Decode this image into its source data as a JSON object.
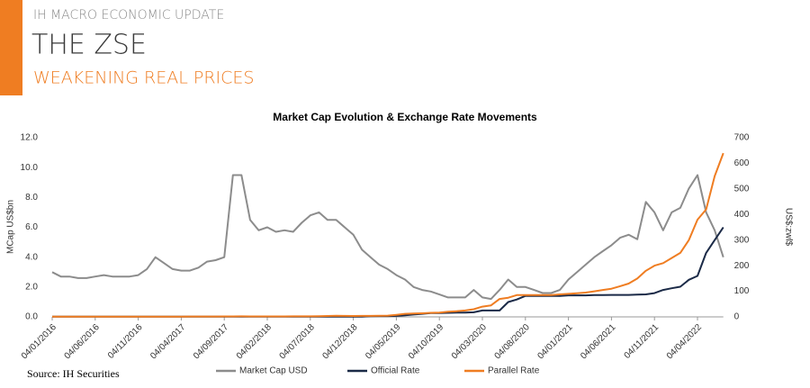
{
  "header": {
    "kicker": "IH MACRO ECONOMIC UPDATE",
    "title": "THE ZSE",
    "subtitle": "WEAKENING REAL PRICES"
  },
  "source": "Source: IH Securities",
  "chart_data": {
    "type": "line",
    "title": "Market Cap Evolution & Exchange Rate Movements",
    "y_label": "MCap US$bn",
    "y2_label": "US$:zwl$",
    "categories": [
      "04/01/2016",
      null,
      null,
      null,
      null,
      "04/06/2016",
      null,
      null,
      null,
      null,
      "04/11/2016",
      null,
      null,
      null,
      null,
      "04/04/2017",
      null,
      null,
      null,
      null,
      "04/09/2017",
      null,
      null,
      null,
      null,
      "04/02/2018",
      null,
      null,
      null,
      null,
      "04/07/2018",
      null,
      null,
      null,
      null,
      "04/12/2018",
      null,
      null,
      null,
      null,
      "04/05/2019",
      null,
      null,
      null,
      null,
      "04/10/2019",
      null,
      null,
      null,
      null,
      "04/03/2020",
      null,
      null,
      null,
      null,
      "04/08/2020",
      null,
      null,
      null,
      null,
      "04/01/2021",
      null,
      null,
      null,
      null,
      "04/06/2021",
      null,
      null,
      null,
      null,
      "04/11/2021",
      null,
      null,
      null,
      null,
      "04/04/2022",
      null,
      null,
      null
    ],
    "series": [
      {
        "name": "Market Cap USD",
        "color": "#8c8c8c",
        "values": [
          3.0,
          2.7,
          2.7,
          2.6,
          2.6,
          2.7,
          2.8,
          2.7,
          2.7,
          2.7,
          2.8,
          3.2,
          4.0,
          3.6,
          3.2,
          3.1,
          3.1,
          3.3,
          3.7,
          3.8,
          4.0,
          9.5,
          9.5,
          6.5,
          5.8,
          6.0,
          5.7,
          5.8,
          5.7,
          6.3,
          6.8,
          7.0,
          6.5,
          6.5,
          6.0,
          5.5,
          4.5,
          4.0,
          3.5,
          3.2,
          2.8,
          2.5,
          2.0,
          1.8,
          1.7,
          1.5,
          1.3,
          1.3,
          1.3,
          1.8,
          1.3,
          1.2,
          1.8,
          2.5,
          2.0,
          2.0,
          1.8,
          1.6,
          1.6,
          1.8,
          2.5,
          3.0,
          3.5,
          4.0,
          4.4,
          4.8,
          5.3,
          5.5,
          5.2,
          7.7,
          7.0,
          5.8,
          7.0,
          7.3,
          8.6,
          9.5,
          7.0,
          5.8,
          4.0
        ]
      },
      {
        "name": "Official Rate",
        "color": "#1b2a47",
        "axis": "y2",
        "values": [
          1,
          1,
          1,
          1,
          1,
          1,
          1,
          1,
          1,
          1,
          1,
          1,
          1,
          1,
          1,
          1,
          1,
          1,
          1,
          1,
          1,
          1,
          1,
          1,
          1,
          1,
          1,
          1,
          1,
          1,
          1,
          1,
          1,
          1,
          1,
          1,
          1,
          2.5,
          3,
          3.2,
          4,
          6,
          9,
          12,
          15,
          15,
          16,
          17,
          17,
          18,
          25,
          25,
          25,
          58,
          68,
          82,
          82,
          82,
          82,
          82,
          84,
          84,
          84,
          85,
          85,
          86,
          86,
          86,
          87,
          88,
          93,
          105,
          112,
          118,
          145,
          160,
          250,
          300,
          350
        ]
      },
      {
        "name": "Parallel Rate",
        "color": "#ef7d22",
        "axis": "y2",
        "values": [
          1,
          1,
          1,
          1,
          1,
          1,
          1,
          1,
          1,
          1,
          1,
          1,
          1.1,
          1.1,
          1.2,
          1.2,
          1.3,
          1.3,
          1.4,
          1.5,
          1.6,
          1.9,
          2,
          1.8,
          1.8,
          1.8,
          1.9,
          1.9,
          2,
          2,
          2.2,
          2.5,
          3.5,
          4.5,
          4,
          3.6,
          3.7,
          4,
          4.5,
          5,
          8,
          12,
          13,
          14,
          16,
          17,
          20,
          22,
          25,
          30,
          40,
          45,
          70,
          75,
          85,
          85,
          85,
          85,
          85,
          88,
          90,
          92,
          95,
          100,
          105,
          110,
          120,
          130,
          150,
          180,
          200,
          210,
          230,
          250,
          300,
          380,
          420,
          550,
          640
        ]
      }
    ],
    "ylim": [
      0,
      12
    ],
    "yticks": [
      {
        "value": 0,
        "label": "0.0"
      },
      {
        "value": 2,
        "label": "2.0"
      },
      {
        "value": 4,
        "label": "4.0"
      },
      {
        "value": 6,
        "label": "6.0"
      },
      {
        "value": 8,
        "label": "8.0"
      },
      {
        "value": 10,
        "label": "10.0"
      },
      {
        "value": 12,
        "label": "12.0"
      }
    ],
    "y2lim": [
      0,
      700
    ],
    "y2ticks": [
      0,
      100,
      200,
      300,
      400,
      500,
      600,
      700
    ],
    "grid": false
  }
}
